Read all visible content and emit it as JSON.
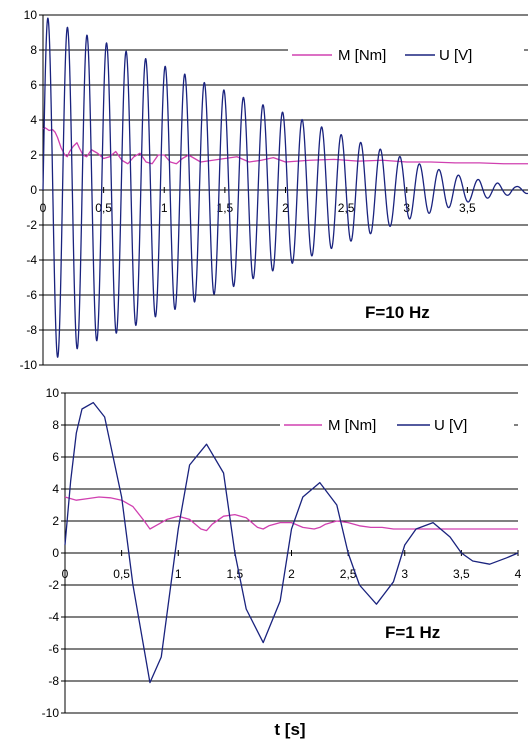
{
  "chart_data": [
    {
      "type": "line",
      "annotation": "F=10 Hz",
      "xlabel": "",
      "ylabel": "",
      "xlim": [
        0,
        4
      ],
      "ylim": [
        -10,
        10
      ],
      "xticks": [
        "0",
        "0,5",
        "1",
        "1,5",
        "2",
        "2,5",
        "3",
        "3,5"
      ],
      "yticks": [
        "10",
        "8",
        "6",
        "4",
        "2",
        "0",
        "-2",
        "-4",
        "-6",
        "-8",
        "-10"
      ],
      "grid": "horizontal",
      "legend_position": "top-right",
      "series": [
        {
          "name": "M [Nm]",
          "color": "#d040b0",
          "x": [
            0,
            0.02,
            0.05,
            0.08,
            0.1,
            0.12,
            0.15,
            0.18,
            0.2,
            0.22,
            0.25,
            0.28,
            0.3,
            0.33,
            0.36,
            0.4,
            0.45,
            0.5,
            0.55,
            0.6,
            0.65,
            0.7,
            0.75,
            0.8,
            0.85,
            0.9,
            0.95,
            1.0,
            1.05,
            1.1,
            1.15,
            1.2,
            1.3,
            1.4,
            1.5,
            1.6,
            1.7,
            1.8,
            1.9,
            2.0,
            2.2,
            2.4,
            2.6,
            2.8,
            3.0,
            3.2,
            3.4,
            3.6,
            3.8,
            4.0
          ],
          "y": [
            3.5,
            3.55,
            3.4,
            3.45,
            3.3,
            3.0,
            2.4,
            2.0,
            1.9,
            2.2,
            2.5,
            2.7,
            2.4,
            2.0,
            1.9,
            2.3,
            2.1,
            1.8,
            1.9,
            2.2,
            1.7,
            1.5,
            1.9,
            2.1,
            1.6,
            1.5,
            2.0,
            2.0,
            1.6,
            1.5,
            1.8,
            2.0,
            1.6,
            1.7,
            1.8,
            1.9,
            1.6,
            1.7,
            1.85,
            1.6,
            1.7,
            1.75,
            1.65,
            1.7,
            1.6,
            1.6,
            1.55,
            1.55,
            1.5,
            1.5
          ]
        },
        {
          "name": "U [V]",
          "color": "#1a237e",
          "frequency_hz": 10,
          "x": [
            0,
            0.05,
            0.1,
            0.15,
            0.2,
            0.25,
            0.3,
            0.35,
            0.4,
            0.45,
            0.5,
            0.55,
            0.6,
            0.65,
            0.7,
            0.75,
            0.8,
            0.85,
            0.9,
            0.95,
            1.0,
            1.05,
            1.1,
            1.15,
            1.2,
            1.25,
            1.3,
            1.35,
            1.4,
            1.45,
            1.5,
            1.55,
            1.6,
            1.65,
            1.7,
            1.75,
            1.8,
            1.85,
            1.9,
            1.95,
            2.0,
            2.05,
            2.1,
            2.15,
            2.2,
            2.25,
            2.3,
            2.35,
            2.4,
            2.45,
            2.5,
            2.55,
            2.6,
            2.65,
            2.7,
            2.75,
            2.8,
            2.85,
            2.9,
            2.95,
            3.0,
            3.05,
            3.1,
            3.15,
            3.2,
            3.25,
            3.3,
            3.35,
            3.4,
            3.45,
            3.5,
            3.55,
            3.6,
            3.65,
            3.7,
            3.75,
            3.8,
            3.85,
            3.9,
            3.95,
            4.0
          ],
          "envelope": [
            9.9,
            9.8,
            9.6,
            9.5,
            9.3,
            9.2,
            9.0,
            8.9,
            8.7,
            8.6,
            8.5,
            8.3,
            8.2,
            8.0,
            7.9,
            7.8,
            7.6,
            7.5,
            7.3,
            7.2,
            7.1,
            6.9,
            6.8,
            6.7,
            6.5,
            6.4,
            6.2,
            6.1,
            6.0,
            5.8,
            5.7,
            5.6,
            5.4,
            5.3,
            5.2,
            5.0,
            4.9,
            4.8,
            4.6,
            4.5,
            4.4,
            4.2,
            4.1,
            4.0,
            3.8,
            3.7,
            3.6,
            3.4,
            3.3,
            3.2,
            3.0,
            2.9,
            2.8,
            2.6,
            2.5,
            2.4,
            2.3,
            2.1,
            2.0,
            1.9,
            1.7,
            1.6,
            1.5,
            1.4,
            1.3,
            1.2,
            1.1,
            1.0,
            0.9,
            0.8,
            0.7,
            0.6,
            0.6,
            0.5,
            0.4,
            0.4,
            0.3,
            0.3,
            0.2,
            0.2,
            0.2
          ]
        }
      ]
    },
    {
      "type": "line",
      "annotation": "F=1 Hz",
      "xlabel": "t [s]",
      "ylabel": "",
      "xlim": [
        0,
        4
      ],
      "ylim": [
        -10,
        10
      ],
      "xticks": [
        "0",
        "0,5",
        "1",
        "1,5",
        "2",
        "2,5",
        "3",
        "3,5",
        "4"
      ],
      "yticks": [
        "10",
        "8",
        "6",
        "4",
        "2",
        "0",
        "-2",
        "-4",
        "-6",
        "-8",
        "-10"
      ],
      "grid": "horizontal",
      "legend_position": "top-right",
      "series": [
        {
          "name": "M [Nm]",
          "color": "#d040b0",
          "x": [
            0,
            0.1,
            0.2,
            0.3,
            0.4,
            0.5,
            0.6,
            0.7,
            0.75,
            0.8,
            0.9,
            1.0,
            1.1,
            1.2,
            1.25,
            1.3,
            1.4,
            1.5,
            1.6,
            1.7,
            1.75,
            1.8,
            1.9,
            2.0,
            2.1,
            2.2,
            2.25,
            2.3,
            2.4,
            2.5,
            2.6,
            2.7,
            2.8,
            2.9,
            3.0,
            3.2,
            3.4,
            3.6,
            3.8,
            4.0
          ],
          "y": [
            3.5,
            3.3,
            3.4,
            3.5,
            3.45,
            3.3,
            2.9,
            2.0,
            1.5,
            1.7,
            2.1,
            2.3,
            2.1,
            1.5,
            1.4,
            1.8,
            2.3,
            2.4,
            2.2,
            1.6,
            1.5,
            1.7,
            1.9,
            1.9,
            1.6,
            1.5,
            1.6,
            1.8,
            2.0,
            1.9,
            1.7,
            1.6,
            1.6,
            1.5,
            1.5,
            1.5,
            1.5,
            1.5,
            1.5,
            1.5
          ]
        },
        {
          "name": "U [V]",
          "color": "#1a237e",
          "x": [
            0,
            0.05,
            0.1,
            0.15,
            0.25,
            0.35,
            0.5,
            0.6,
            0.75,
            0.85,
            1.0,
            1.1,
            1.25,
            1.4,
            1.5,
            1.6,
            1.75,
            1.9,
            2.0,
            2.1,
            2.25,
            2.4,
            2.5,
            2.6,
            2.75,
            2.9,
            3.0,
            3.1,
            3.25,
            3.4,
            3.5,
            3.6,
            3.75,
            3.9,
            4.0
          ],
          "y": [
            0.5,
            4.5,
            7.5,
            9.0,
            9.4,
            8.5,
            3.5,
            -2.0,
            -8.1,
            -6.5,
            1.5,
            5.5,
            6.8,
            5.0,
            0.0,
            -3.5,
            -5.6,
            -3.0,
            1.5,
            3.5,
            4.4,
            3.0,
            0.0,
            -2.0,
            -3.2,
            -1.8,
            0.5,
            1.5,
            1.9,
            1.0,
            0.0,
            -0.5,
            -0.7,
            -0.3,
            0.0
          ]
        }
      ]
    }
  ]
}
